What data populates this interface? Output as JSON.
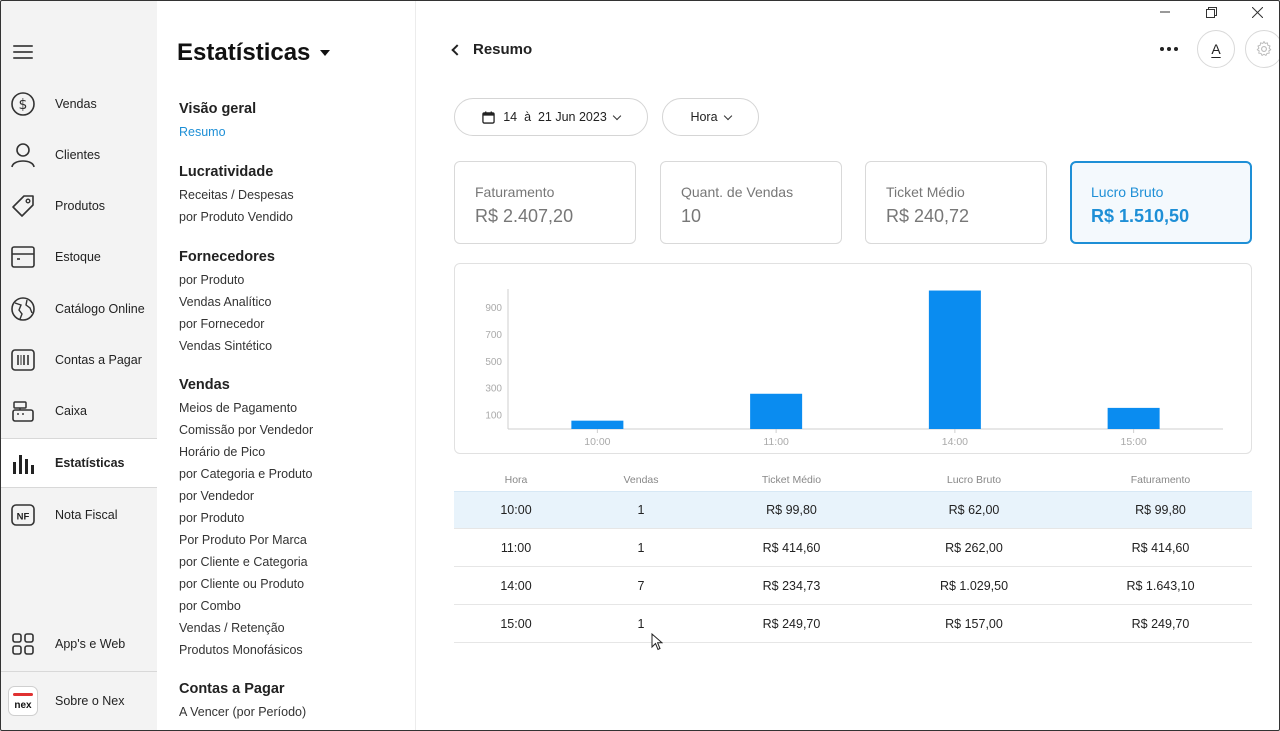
{
  "rail": {
    "items": [
      {
        "label": "Vendas",
        "icon": "dollar-circle-icon"
      },
      {
        "label": "Clientes",
        "icon": "person-icon"
      },
      {
        "label": "Produtos",
        "icon": "tag-icon"
      },
      {
        "label": "Estoque",
        "icon": "box-icon"
      },
      {
        "label": "Catálogo Online",
        "icon": "globe-icon"
      },
      {
        "label": "Contas a Pagar",
        "icon": "barcode-icon"
      },
      {
        "label": "Caixa",
        "icon": "cash-register-icon"
      },
      {
        "label": "Estatísticas",
        "icon": "bar-chart-icon"
      },
      {
        "label": "Nota Fiscal",
        "icon": "nf-icon"
      }
    ],
    "bottom": [
      {
        "label": "App's e Web",
        "icon": "grid-apps-icon"
      },
      {
        "label": "Sobre o Nex",
        "icon": "nex-logo"
      }
    ],
    "nex_logo_text": "nex",
    "nf_text": "NF",
    "active": "Estatísticas"
  },
  "sidebar": {
    "title": "Estatísticas",
    "sections": [
      {
        "heading": "Visão geral",
        "links": [
          "Resumo"
        ]
      },
      {
        "heading": "Lucratividade",
        "links": [
          "Receitas / Despesas",
          "por Produto Vendido"
        ]
      },
      {
        "heading": "Fornecedores",
        "links": [
          "por Produto",
          "Vendas Analítico",
          "por Fornecedor",
          "Vendas Sintético"
        ]
      },
      {
        "heading": "Vendas",
        "links": [
          "Meios de Pagamento",
          "Comissão por Vendedor",
          "Horário de Pico",
          "por Categoria e Produto",
          "por Vendedor",
          "por Produto",
          "Por Produto Por Marca",
          "por Cliente e Categoria",
          "por Cliente ou Produto",
          "por Combo",
          "Vendas / Retenção",
          "Produtos Monofásicos"
        ]
      },
      {
        "heading": "Contas a Pagar",
        "links": [
          "A Vencer (por Período)"
        ]
      }
    ],
    "selected_link": "Resumo"
  },
  "header": {
    "back_label": "Resumo",
    "font_button_label": "A"
  },
  "filters": {
    "date_range": "14  à  21 Jun 2023",
    "granularity": "Hora"
  },
  "cards": [
    {
      "title": "Faturamento",
      "value": "R$ 2.407,20"
    },
    {
      "title": "Quant. de Vendas",
      "value": "10"
    },
    {
      "title": "Ticket Médio",
      "value": "R$ 240,72"
    },
    {
      "title": "Lucro Bruto",
      "value": "R$ 1.510,50"
    }
  ],
  "active_card": "Lucro Bruto",
  "chart_data": {
    "type": "bar",
    "categories": [
      "10:00",
      "11:00",
      "14:00",
      "15:00"
    ],
    "values": [
      62.0,
      262.0,
      1029.5,
      157.0
    ],
    "yticks": [
      "100",
      "300",
      "500",
      "700",
      "900"
    ],
    "ylim": [
      0,
      1100
    ],
    "grid": false,
    "bar_color": "#0a8cf0"
  },
  "table": {
    "headers": [
      "Hora",
      "Vendas",
      "Ticket Médio",
      "Lucro Bruto",
      "Faturamento"
    ],
    "rows": [
      [
        "10:00",
        "1",
        "R$ 99,80",
        "R$ 62,00",
        "R$ 99,80"
      ],
      [
        "11:00",
        "1",
        "R$ 414,60",
        "R$ 262,00",
        "R$ 414,60"
      ],
      [
        "14:00",
        "7",
        "R$ 234,73",
        "R$ 1.029,50",
        "R$ 1.643,10"
      ],
      [
        "15:00",
        "1",
        "R$ 249,70",
        "R$ 157,00",
        "R$ 249,70"
      ]
    ],
    "highlighted_row": 0
  },
  "colors": {
    "accent": "#1e8fd6",
    "rail_bg": "#f3f3f3",
    "row_highlight": "#e8f3fb"
  }
}
